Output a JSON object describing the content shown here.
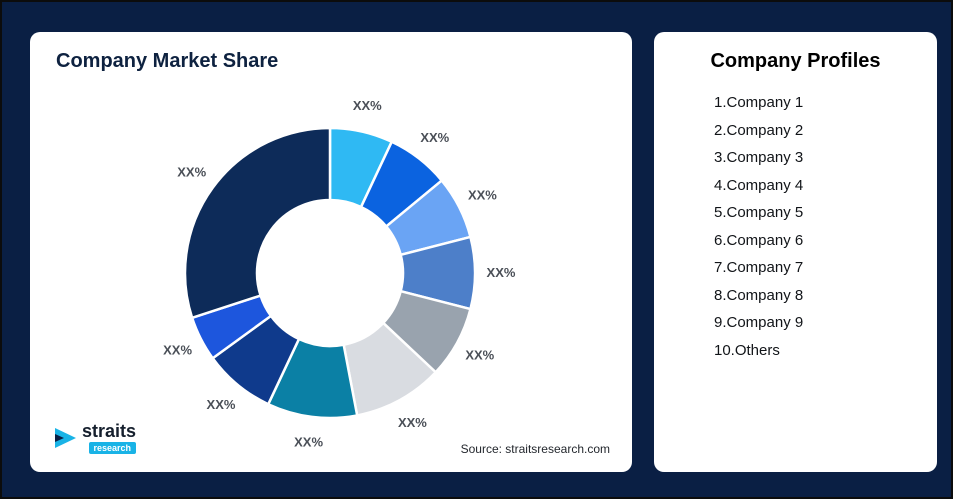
{
  "left_panel": {
    "title": "Company Market Share",
    "source": "Source: straitsresearch.com",
    "logo": {
      "name": "straits",
      "sub": "research"
    }
  },
  "right_panel": {
    "title": "Company Profiles",
    "items": [
      "1.Company 1",
      "2.Company 2",
      "3.Company 3",
      "4.Company 4",
      "5.Company 5",
      "6.Company 6",
      "7.Company 7",
      "8.Company 8",
      "9.Company 9",
      "10.Others"
    ]
  },
  "chart_data": {
    "type": "pie",
    "subtype": "donut",
    "title": "Company Market Share",
    "labels": [
      "XX%",
      "XX%",
      "XX%",
      "XX%",
      "XX%",
      "XX%",
      "XX%",
      "XX%",
      "XX%",
      "XX%"
    ],
    "values": [
      7,
      7,
      7,
      8,
      8,
      10,
      10,
      8,
      5,
      30
    ],
    "values_note": "estimated from arc angles; actual values masked as XX% in image",
    "colors": [
      "#2fb9f3",
      "#0b63e0",
      "#6aa4f4",
      "#4d7fc9",
      "#99a3ae",
      "#d9dce1",
      "#0b80a5",
      "#0f3a8c",
      "#1d56dd",
      "#0d2b59"
    ],
    "legend": "none",
    "start_angle_deg": 0,
    "direction": "clockwise",
    "inner_radius_ratio": 0.5,
    "label_color": "#4a4f57",
    "background": "#ffffff",
    "page_background": "#0a1f44"
  }
}
